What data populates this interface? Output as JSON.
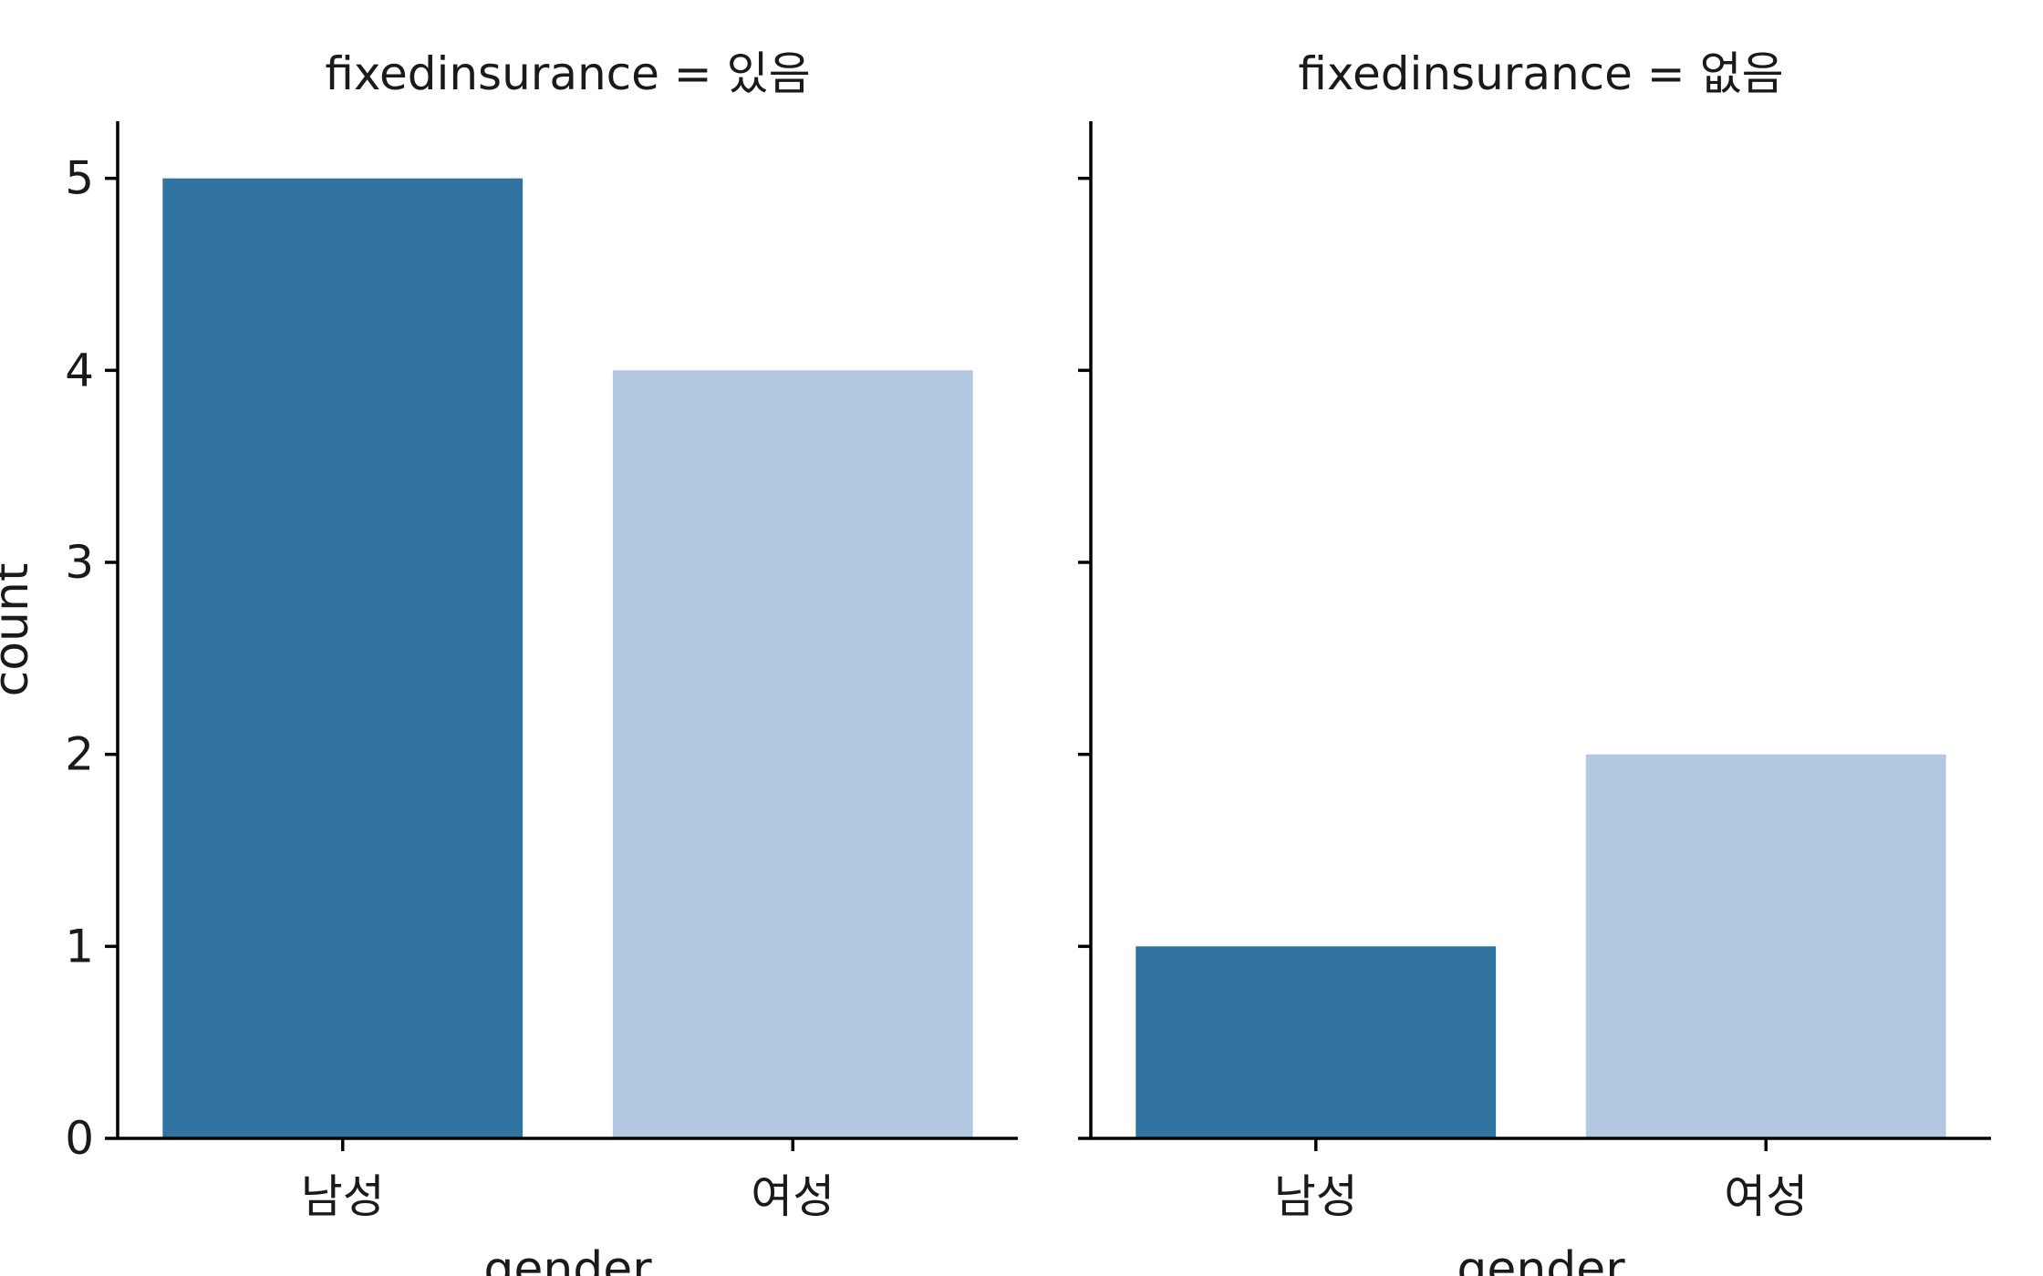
{
  "chart_data": {
    "type": "bar",
    "facet_variable": "fixedinsurance",
    "xlabel": "gender",
    "ylabel": "count",
    "categories": [
      "남성",
      "여성"
    ],
    "colors": [
      "#3274a1",
      "#b3c8e1"
    ],
    "ylim": [
      0,
      5.25
    ],
    "yticks": [
      0,
      1,
      2,
      3,
      4,
      5
    ],
    "shared_y": true,
    "grid": false,
    "facets": [
      {
        "title": "fixedinsurance = 있음",
        "values": [
          5,
          4
        ]
      },
      {
        "title": "fixedinsurance = 없음",
        "values": [
          1,
          2
        ]
      }
    ]
  }
}
